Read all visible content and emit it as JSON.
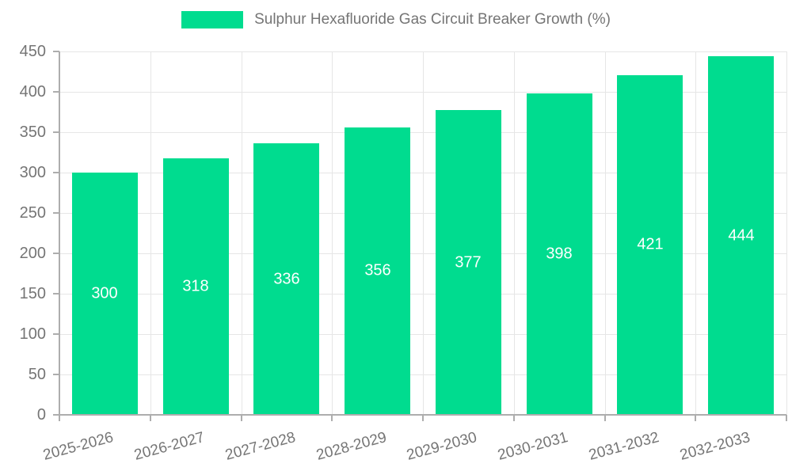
{
  "chart_data": {
    "type": "bar",
    "legend_label": "Sulphur Hexafluoride Gas Circuit Breaker Growth (%)",
    "categories": [
      "2025-2026",
      "2026-2027",
      "2027-2028",
      "2028-2029",
      "2029-2030",
      "2030-2031",
      "2031-2032",
      "2032-2033"
    ],
    "values": [
      300,
      318,
      336,
      356,
      377,
      398,
      421,
      444
    ],
    "y_ticks": [
      0,
      50,
      100,
      150,
      200,
      250,
      300,
      350,
      400,
      450
    ],
    "ylim": [
      0,
      450
    ],
    "xlabel": "",
    "ylabel": "",
    "grid": true,
    "legend_position": "top-center",
    "x_label_rotation_deg": -15,
    "bar_color": "#00DC8F",
    "value_label_color": "#FFFFFF"
  },
  "colors": {
    "background": "#FFFFFF",
    "grid_line": "#E6E6E6",
    "axis_line": "#ADADAD",
    "tick_label": "#757575",
    "legend_text": "#757575"
  }
}
